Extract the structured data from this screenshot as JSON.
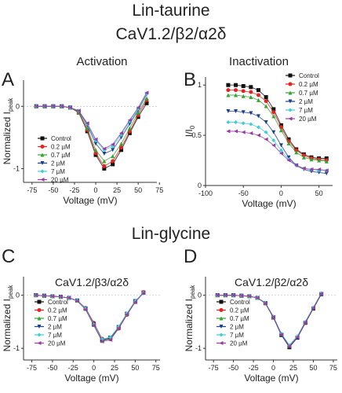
{
  "headers": {
    "top": "Lin-taurine",
    "top_sub": "CaV1.2/β2/α2δ",
    "activation": "Activation",
    "inactivation": "Inactivation",
    "bottom": "Lin-glycine"
  },
  "panel_letters": [
    "A",
    "B",
    "C",
    "D"
  ],
  "legend_labels": [
    "Control",
    "0.2 µM",
    "0.7 µM",
    "2 µM",
    "7 µM",
    "20 µM"
  ],
  "colors": {
    "Control": "#111111",
    "0.2 µM": "#e8231f",
    "0.7 µM": "#33a532",
    "2 µM": "#1c3f8f",
    "7 µM": "#3ccfd6",
    "20 µM": "#9a3aa6",
    "axis": "#333333"
  },
  "chart_data": [
    {
      "panel": "A",
      "type": "scatter",
      "title": "",
      "xlabel": "Voltage (mV)",
      "ylabel": "Normalized I",
      "ylabel_sub": "peak",
      "xlim": [
        -85,
        72
      ],
      "ylim": [
        -1.22,
        0.42
      ],
      "xticks": [
        -75,
        -50,
        -25,
        0,
        25,
        50,
        75
      ],
      "yticks": [
        0,
        -1
      ],
      "legend_position": "lower-left",
      "x": [
        -70,
        -60,
        -50,
        -40,
        -30,
        -20,
        -10,
        0,
        10,
        20,
        30,
        40,
        50,
        60
      ],
      "series": [
        {
          "name": "Control",
          "marker": "square",
          "values": [
            0,
            0,
            0,
            0,
            -0.02,
            -0.1,
            -0.4,
            -0.78,
            -1.0,
            -0.93,
            -0.7,
            -0.43,
            -0.17,
            0.05
          ]
        },
        {
          "name": "0.2 µM",
          "marker": "circle",
          "values": [
            0,
            0,
            0,
            0,
            -0.02,
            -0.1,
            -0.38,
            -0.75,
            -0.96,
            -0.88,
            -0.66,
            -0.4,
            -0.14,
            0.1
          ]
        },
        {
          "name": "0.7 µM",
          "marker": "triangle-up",
          "values": [
            0,
            0,
            0,
            0,
            -0.02,
            -0.09,
            -0.35,
            -0.7,
            -0.88,
            -0.8,
            -0.6,
            -0.35,
            -0.1,
            0.13
          ]
        },
        {
          "name": "2 µM",
          "marker": "triangle-down",
          "values": [
            0,
            0,
            0,
            0,
            -0.02,
            -0.08,
            -0.3,
            -0.6,
            -0.76,
            -0.7,
            -0.5,
            -0.28,
            -0.06,
            0.19
          ]
        },
        {
          "name": "7 µM",
          "marker": "diamond",
          "values": [
            0,
            0,
            0,
            0,
            -0.02,
            -0.07,
            -0.28,
            -0.55,
            -0.7,
            -0.64,
            -0.46,
            -0.24,
            -0.04,
            0.2
          ]
        },
        {
          "name": "20 µM",
          "marker": "triangle-left",
          "values": [
            0,
            0,
            0,
            0,
            -0.02,
            -0.07,
            -0.27,
            -0.53,
            -0.68,
            -0.61,
            -0.43,
            -0.22,
            -0.02,
            0.22
          ]
        }
      ]
    },
    {
      "panel": "B",
      "type": "scatter",
      "title": "",
      "xlabel": "Voltage (mV)",
      "ylabel": "I/I",
      "ylabel_sub": "0",
      "xlim": [
        -100,
        68
      ],
      "ylim": [
        0,
        1.08
      ],
      "xticks": [
        -100,
        -50,
        0,
        50
      ],
      "yticks": [
        0,
        0.5,
        1
      ],
      "yticklabels": [
        "0",
        "0.5",
        "1"
      ],
      "legend_position": "top-right",
      "x": [
        -70,
        -60,
        -50,
        -40,
        -30,
        -20,
        -10,
        0,
        10,
        20,
        30,
        40,
        50,
        60
      ],
      "series": [
        {
          "name": "Control",
          "marker": "square",
          "values": [
            1.0,
            1.0,
            0.99,
            0.98,
            0.95,
            0.88,
            0.76,
            0.6,
            0.46,
            0.36,
            0.31,
            0.28,
            0.27,
            0.27
          ]
        },
        {
          "name": "0.2 µM",
          "marker": "circle",
          "values": [
            0.95,
            0.95,
            0.94,
            0.93,
            0.9,
            0.84,
            0.73,
            0.58,
            0.44,
            0.35,
            0.3,
            0.27,
            0.26,
            0.25
          ]
        },
        {
          "name": "0.7 µM",
          "marker": "triangle-up",
          "values": [
            0.9,
            0.9,
            0.89,
            0.88,
            0.85,
            0.79,
            0.69,
            0.55,
            0.42,
            0.33,
            0.28,
            0.26,
            0.25,
            0.24
          ]
        },
        {
          "name": "2 µM",
          "marker": "triangle-down",
          "values": [
            0.74,
            0.74,
            0.73,
            0.72,
            0.69,
            0.63,
            0.53,
            0.4,
            0.28,
            0.2,
            0.16,
            0.14,
            0.13,
            0.12
          ]
        },
        {
          "name": "7 µM",
          "marker": "diamond",
          "values": [
            0.63,
            0.63,
            0.62,
            0.61,
            0.58,
            0.53,
            0.45,
            0.35,
            0.26,
            0.2,
            0.17,
            0.16,
            0.15,
            0.15
          ]
        },
        {
          "name": "20 µM",
          "marker": "triangle-left",
          "values": [
            0.54,
            0.54,
            0.53,
            0.52,
            0.5,
            0.46,
            0.4,
            0.32,
            0.25,
            0.2,
            0.17,
            0.16,
            0.16,
            0.15
          ]
        }
      ]
    },
    {
      "panel": "C",
      "type": "scatter",
      "title": "CaV1.2/β3/α2δ",
      "xlabel": "Voltage (mV)",
      "ylabel": "Normalized I",
      "ylabel_sub": "peak",
      "xlim": [
        -85,
        80
      ],
      "ylim": [
        -1.22,
        0.35
      ],
      "xticks": [
        -75,
        -50,
        -25,
        0,
        25,
        50,
        75
      ],
      "yticks": [
        0,
        -1
      ],
      "legend_position": "lower-left",
      "x": [
        -70,
        -60,
        -50,
        -40,
        -30,
        -20,
        -10,
        0,
        10,
        20,
        30,
        40,
        50,
        60
      ],
      "series": [
        {
          "name": "Control",
          "marker": "square",
          "values": [
            0,
            -0.01,
            -0.02,
            -0.03,
            -0.05,
            -0.1,
            -0.25,
            -0.55,
            -0.85,
            -0.8,
            -0.6,
            -0.35,
            -0.12,
            0.05
          ]
        },
        {
          "name": "0.2 µM",
          "marker": "circle",
          "values": [
            0,
            -0.01,
            -0.02,
            -0.03,
            -0.05,
            -0.1,
            -0.24,
            -0.52,
            -0.82,
            -0.83,
            -0.63,
            -0.37,
            -0.13,
            0.06
          ]
        },
        {
          "name": "0.7 µM",
          "marker": "triangle-up",
          "values": [
            0,
            -0.01,
            -0.02,
            -0.03,
            -0.05,
            -0.1,
            -0.26,
            -0.56,
            -0.86,
            -0.82,
            -0.61,
            -0.36,
            -0.12,
            0.05
          ]
        },
        {
          "name": "2 µM",
          "marker": "triangle-down",
          "values": [
            0,
            -0.01,
            -0.02,
            -0.03,
            -0.05,
            -0.1,
            -0.25,
            -0.54,
            -0.84,
            -0.8,
            -0.6,
            -0.35,
            -0.11,
            0.04
          ]
        },
        {
          "name": "7 µM",
          "marker": "diamond",
          "values": [
            0,
            -0.01,
            -0.02,
            -0.03,
            -0.05,
            -0.1,
            -0.25,
            -0.55,
            -0.83,
            -0.79,
            -0.59,
            -0.34,
            -0.11,
            0.05
          ]
        },
        {
          "name": "20 µM",
          "marker": "triangle-left",
          "values": [
            0,
            -0.01,
            -0.02,
            -0.03,
            -0.05,
            -0.11,
            -0.27,
            -0.57,
            -0.87,
            -0.84,
            -0.62,
            -0.36,
            -0.13,
            0.04
          ]
        }
      ]
    },
    {
      "panel": "D",
      "type": "scatter",
      "title": "CaV1.2/β2/α2δ",
      "xlabel": "Voltage (mV)",
      "ylabel": "Normalized I",
      "ylabel_sub": "peak",
      "xlim": [
        -85,
        80
      ],
      "ylim": [
        -1.22,
        0.35
      ],
      "xticks": [
        -75,
        -50,
        -25,
        0,
        25,
        50,
        75
      ],
      "yticks": [
        0,
        -1
      ],
      "legend_position": "lower-left",
      "x": [
        -70,
        -60,
        -50,
        -40,
        -30,
        -20,
        -10,
        0,
        10,
        20,
        30,
        40,
        50,
        60
      ],
      "series": [
        {
          "name": "Control",
          "marker": "square",
          "values": [
            0,
            0,
            0,
            -0.01,
            -0.02,
            -0.05,
            -0.15,
            -0.42,
            -0.75,
            -0.98,
            -0.8,
            -0.52,
            -0.25,
            0.02
          ]
        },
        {
          "name": "0.2 µM",
          "marker": "circle",
          "values": [
            0,
            0,
            0,
            -0.01,
            -0.02,
            -0.05,
            -0.15,
            -0.42,
            -0.74,
            -0.96,
            -0.79,
            -0.52,
            -0.24,
            0.03
          ]
        },
        {
          "name": "0.7 µM",
          "marker": "triangle-up",
          "values": [
            0,
            0,
            0,
            -0.01,
            -0.02,
            -0.05,
            -0.14,
            -0.41,
            -0.73,
            -0.95,
            -0.78,
            -0.5,
            -0.23,
            0.03
          ]
        },
        {
          "name": "2 µM",
          "marker": "triangle-down",
          "values": [
            0,
            0,
            0,
            -0.01,
            -0.02,
            -0.05,
            -0.15,
            -0.42,
            -0.75,
            -0.97,
            -0.8,
            -0.52,
            -0.25,
            0.02
          ]
        },
        {
          "name": "7 µM",
          "marker": "diamond",
          "values": [
            0,
            0,
            0,
            -0.01,
            -0.02,
            -0.05,
            -0.14,
            -0.4,
            -0.72,
            -0.94,
            -0.77,
            -0.5,
            -0.23,
            0.04
          ]
        },
        {
          "name": "20 µM",
          "marker": "triangle-left",
          "values": [
            0,
            0,
            0,
            -0.01,
            -0.02,
            -0.05,
            -0.15,
            -0.41,
            -0.74,
            -0.96,
            -0.79,
            -0.51,
            -0.24,
            0.03
          ]
        }
      ]
    }
  ]
}
